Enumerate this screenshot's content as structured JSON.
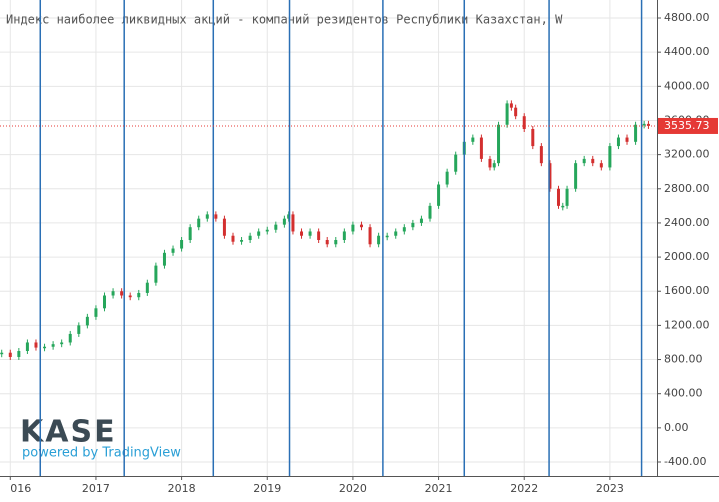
{
  "chart_data": {
    "type": "candlestick",
    "title": "Индекс наиболее ликвидных акций - компаний резидентов Республики Казахстан, W",
    "logo": "KASE",
    "credit": "powered by TradingView",
    "x": [
      2015.9,
      2016.0,
      2016.1,
      2016.2,
      2016.3,
      2016.4,
      2016.5,
      2016.6,
      2016.7,
      2016.8,
      2016.9,
      2017.0,
      2017.1,
      2017.2,
      2017.3,
      2017.4,
      2017.5,
      2017.6,
      2017.7,
      2017.8,
      2017.9,
      2018.0,
      2018.1,
      2018.2,
      2018.3,
      2018.4,
      2018.5,
      2018.6,
      2018.7,
      2018.8,
      2018.9,
      2019.0,
      2019.1,
      2019.2,
      2019.25,
      2019.3,
      2019.4,
      2019.5,
      2019.6,
      2019.7,
      2019.8,
      2019.9,
      2020.0,
      2020.1,
      2020.2,
      2020.3,
      2020.4,
      2020.5,
      2020.6,
      2020.7,
      2020.8,
      2020.9,
      2021.0,
      2021.1,
      2021.2,
      2021.3,
      2021.4,
      2021.5,
      2021.6,
      2021.65,
      2021.7,
      2021.8,
      2021.85,
      2021.9,
      2022.0,
      2022.1,
      2022.2,
      2022.3,
      2022.4,
      2022.45,
      2022.5,
      2022.6,
      2022.7,
      2022.8,
      2022.9,
      2023.0,
      2023.1,
      2023.2,
      2023.3,
      2023.4,
      2023.45
    ],
    "values": [
      880,
      830,
      900,
      1000,
      940,
      950,
      980,
      1000,
      1100,
      1200,
      1300,
      1400,
      1550,
      1600,
      1550,
      1530,
      1580,
      1700,
      1900,
      2050,
      2100,
      2200,
      2350,
      2450,
      2500,
      2450,
      2250,
      2180,
      2200,
      2250,
      2300,
      2320,
      2380,
      2450,
      2500,
      2300,
      2250,
      2300,
      2200,
      2150,
      2200,
      2300,
      2380,
      2350,
      2150,
      2250,
      2250,
      2300,
      2350,
      2400,
      2450,
      2600,
      2850,
      3000,
      3200,
      3350,
      3400,
      3150,
      3050,
      3100,
      3550,
      3800,
      3750,
      3650,
      3500,
      3300,
      3100,
      2800,
      2600,
      2600,
      2800,
      3100,
      3150,
      3100,
      3050,
      3300,
      3400,
      3350,
      3550,
      3560,
      3536
    ],
    "up_color": "#26a65b",
    "down_color": "#d32f2f",
    "xlim": [
      2015.88,
      2023.55
    ],
    "xticks": [
      {
        "value": 2016,
        "label": "016"
      },
      2017,
      2018,
      2019,
      2020,
      2021,
      2022,
      2023
    ],
    "ylim": [
      -564,
      5011
    ],
    "yticks": [
      {
        "value": -400,
        "label": "-400.00"
      },
      {
        "value": 0,
        "label": "0.00"
      },
      {
        "value": 400,
        "label": "400.00"
      },
      {
        "value": 800,
        "label": "800.00"
      },
      {
        "value": 1200,
        "label": "1200.00"
      },
      {
        "value": 1600,
        "label": "1600.00"
      },
      {
        "value": 2000,
        "label": "2000.00"
      },
      {
        "value": 2400,
        "label": "2400.00"
      },
      {
        "value": 2800,
        "label": "2800.00"
      },
      {
        "value": 3200,
        "label": "3200.00"
      },
      {
        "value": 3600,
        "label": "3600.00"
      },
      {
        "value": 4000,
        "label": "4000.00"
      },
      {
        "value": 4400,
        "label": "4400.00"
      },
      {
        "value": 4800,
        "label": "4800.00"
      }
    ],
    "grid": true,
    "vlines": [
      2016.35,
      2017.33,
      2018.37,
      2019.26,
      2020.35,
      2021.3,
      2022.29,
      2023.37
    ],
    "vline_color": "#2a6fb5",
    "price_line": 3535.73,
    "price_color": "#e53935"
  }
}
